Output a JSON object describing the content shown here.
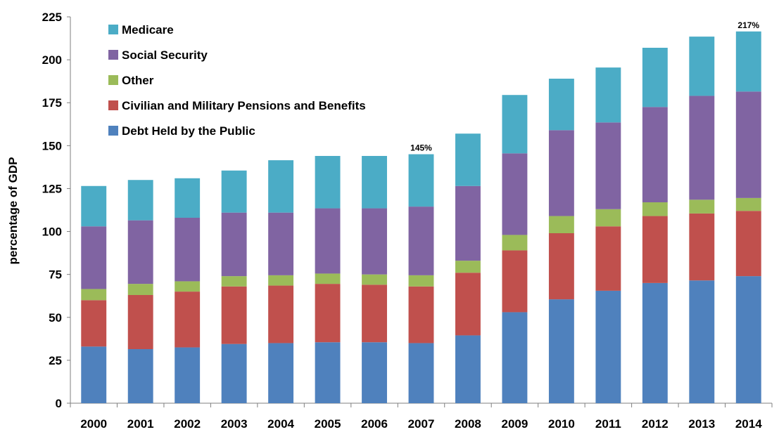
{
  "chart_data": {
    "type": "bar",
    "stacked": true,
    "ylabel": "percentage of GDP",
    "xlabel": "",
    "ylim": [
      0,
      225
    ],
    "yticks": [
      0,
      25,
      50,
      75,
      100,
      125,
      150,
      175,
      200,
      225
    ],
    "grid": false,
    "legend_position": "top-left",
    "categories": [
      "2000",
      "2001",
      "2002",
      "2003",
      "2004",
      "2005",
      "2006",
      "2007",
      "2008",
      "2009",
      "2010",
      "2011",
      "2012",
      "2013",
      "2014"
    ],
    "series": [
      {
        "name": "Debt Held by the Public",
        "color": "#4f81bd",
        "values": [
          33,
          31.5,
          32.5,
          34.5,
          35,
          35.5,
          35.5,
          35,
          39.5,
          53,
          60.5,
          65.5,
          70,
          71.5,
          74
        ]
      },
      {
        "name": "Civilian and Military Pensions and Benefits",
        "color": "#c0504d",
        "values": [
          27,
          31.5,
          32.5,
          33.5,
          33.5,
          34,
          33.5,
          33,
          36.5,
          36,
          38.5,
          37.5,
          39,
          39,
          38
        ]
      },
      {
        "name": "Other",
        "color": "#9bbb59",
        "values": [
          6.5,
          6.5,
          6,
          6,
          6,
          6,
          6,
          6.5,
          7,
          9,
          10,
          10,
          8,
          8,
          7.5
        ]
      },
      {
        "name": "Social Security",
        "color": "#8064a2",
        "values": [
          36.5,
          37,
          37,
          37,
          36.5,
          38,
          38.5,
          40,
          43.5,
          47.5,
          50,
          50.5,
          55.5,
          60.5,
          62
        ]
      },
      {
        "name": "Medicare",
        "color": "#4bacc6",
        "values": [
          23.5,
          23.5,
          23,
          24.5,
          30.5,
          30.5,
          30.5,
          30.5,
          30.5,
          34,
          30,
          32,
          34.5,
          34.5,
          35
        ]
      }
    ],
    "legend_order": [
      "Medicare",
      "Social Security",
      "Other",
      "Civilian and Military Pensions and Benefits",
      "Debt Held by the Public"
    ],
    "annotations": [
      {
        "category": "2007",
        "text": "145%"
      },
      {
        "category": "2014",
        "text": "217%"
      }
    ]
  }
}
